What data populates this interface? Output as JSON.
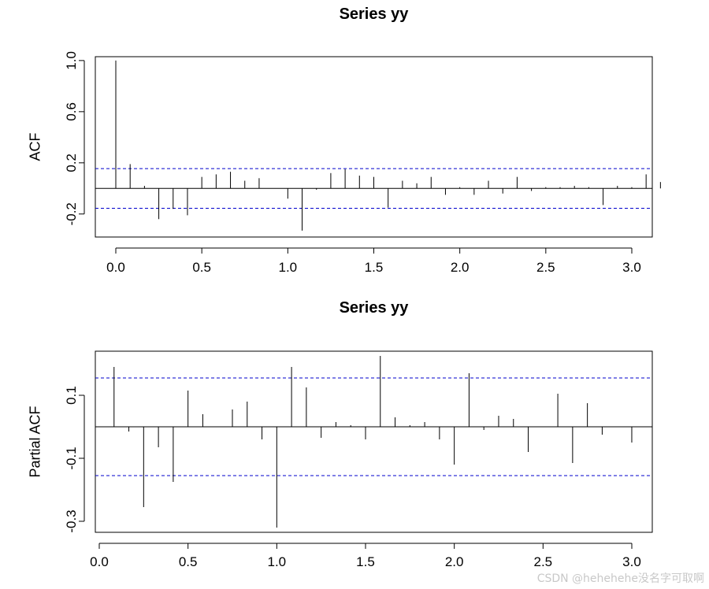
{
  "chart_data": [
    {
      "type": "bar",
      "title": "Series  yy",
      "xlabel": "",
      "ylabel": "ACF",
      "xlim": [
        0,
        3.0
      ],
      "ylim": [
        -0.38,
        1.03
      ],
      "x_ticks": [
        0.0,
        0.5,
        1.0,
        1.5,
        2.0,
        2.5,
        3.0
      ],
      "x_tick_labels": [
        "0.0",
        "0.5",
        "1.0",
        "1.5",
        "2.0",
        "2.5",
        "3.0"
      ],
      "y_ticks": [
        -0.2,
        0.2,
        0.6,
        1.0
      ],
      "y_tick_labels": [
        "-0.2",
        "0.2",
        "0.6",
        "1.0"
      ],
      "ci": 0.155,
      "lag_step": 0.08333,
      "values": [
        1.0,
        0.19,
        0.02,
        -0.24,
        -0.16,
        -0.21,
        0.09,
        0.11,
        0.13,
        0.06,
        0.08,
        0.0,
        -0.08,
        -0.33,
        -0.01,
        0.12,
        0.15,
        0.1,
        0.09,
        -0.15,
        0.06,
        0.04,
        0.09,
        -0.05,
        0.01,
        -0.05,
        0.06,
        -0.04,
        0.09,
        -0.02,
        0.01,
        0.01,
        0.02,
        0.01,
        -0.13,
        0.02,
        0.01,
        0.11,
        0.05
      ]
    },
    {
      "type": "bar",
      "title": "Series  yy",
      "xlabel": "",
      "ylabel": "Partial ACF",
      "xlim": [
        0,
        3.0
      ],
      "ylim": [
        -0.335,
        0.24
      ],
      "x_ticks": [
        0.0,
        0.5,
        1.0,
        1.5,
        2.0,
        2.5,
        3.0
      ],
      "x_tick_labels": [
        "0.0",
        "0.5",
        "1.0",
        "1.5",
        "2.0",
        "2.5",
        "3.0"
      ],
      "y_ticks": [
        -0.3,
        -0.1,
        0.1
      ],
      "y_tick_labels": [
        "-0.3",
        "-0.1",
        "0.1"
      ],
      "ci": 0.155,
      "lag_step": 0.08333,
      "start_lag": 1,
      "values": [
        0.19,
        -0.015,
        -0.255,
        -0.065,
        -0.175,
        0.115,
        0.04,
        0.0,
        0.055,
        0.08,
        -0.04,
        -0.32,
        0.19,
        0.125,
        -0.035,
        0.015,
        0.005,
        -0.04,
        0.225,
        0.03,
        0.005,
        0.015,
        -0.04,
        -0.12,
        0.17,
        -0.01,
        0.035,
        0.025,
        -0.08,
        0.0,
        0.105,
        -0.115,
        0.075,
        -0.025,
        0.0,
        -0.05
      ]
    }
  ],
  "watermark": "CSDN @hehehehe没名字可取啊",
  "colors": {
    "ci_line": "#0000cc",
    "bars": "#000000"
  }
}
